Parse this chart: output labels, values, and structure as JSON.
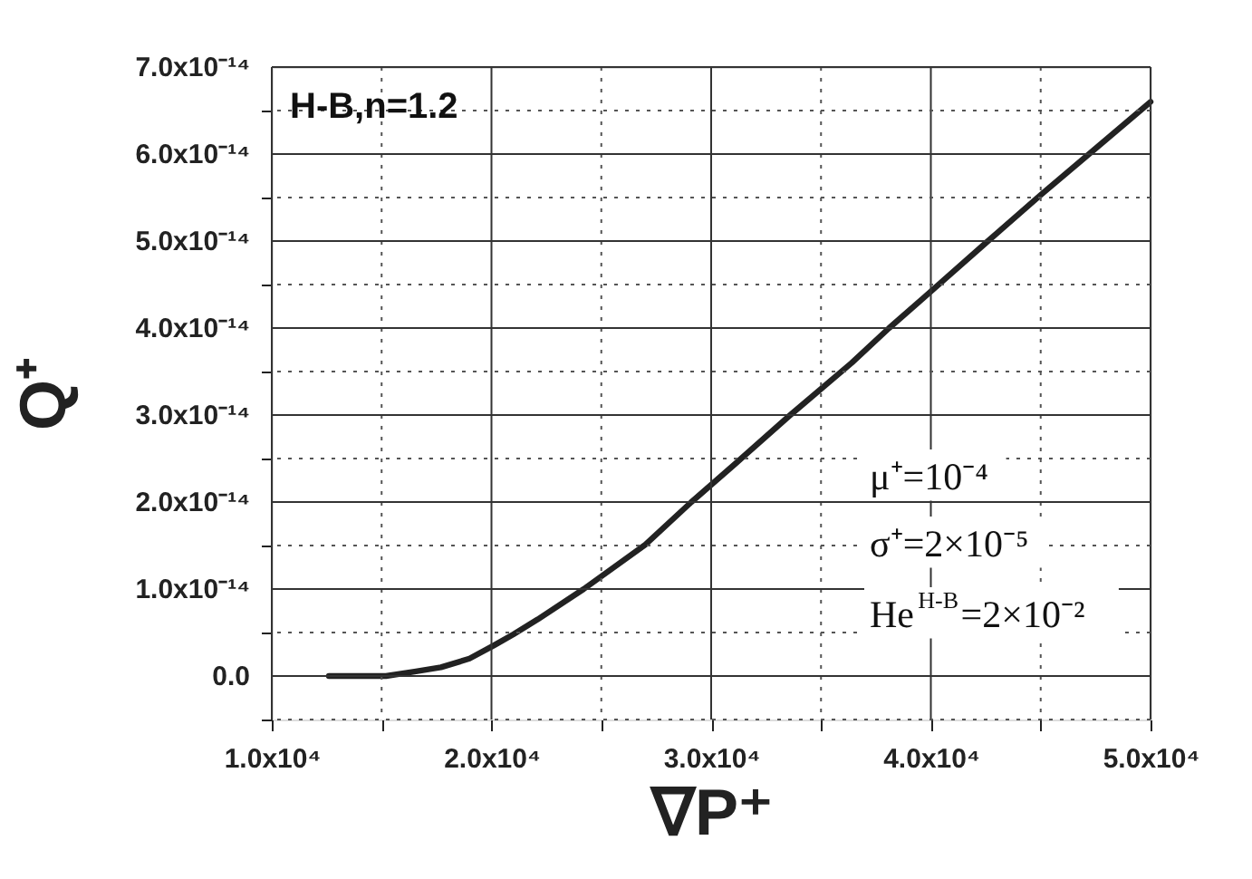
{
  "chart_data": {
    "type": "line",
    "xlabel": "∇P⁺",
    "ylabel": "Q⁺",
    "annotations": [
      "H-B,n=1.2",
      "μ⁺=10⁻⁴",
      "σ⁺=2×10⁻⁵",
      "He$^{H-B}$=2×10⁻²"
    ],
    "x": [
      12600,
      14000,
      15200,
      16500,
      17700,
      19000,
      20100,
      21000,
      22100,
      24200,
      27000,
      29100,
      31100,
      33600,
      36400,
      38100,
      40000,
      42600,
      45000,
      47200,
      50000
    ],
    "series": [
      {
        "color": "#222222",
        "values": [
          0,
          0,
          0,
          5e-16,
          1e-15,
          2e-15,
          3.5e-15,
          4.8e-15,
          6.5e-15,
          1e-14,
          1.51e-14,
          2e-14,
          2.44e-14,
          3e-14,
          3.6e-14,
          4e-14,
          4.42e-14,
          5e-14,
          5.53e-14,
          6e-14,
          6.6e-14
        ]
      }
    ],
    "xlim": [
      10000,
      50000
    ],
    "ylim": [
      -5e-15,
      7e-14
    ],
    "xticks": [
      {
        "value": 10000,
        "label": "1.0x10⁴"
      },
      {
        "value": 15000,
        "label": null
      },
      {
        "value": 20000,
        "label": "2.0x10⁴"
      },
      {
        "value": 25000,
        "label": null
      },
      {
        "value": 30000,
        "label": "3.0x10⁴"
      },
      {
        "value": 35000,
        "label": null
      },
      {
        "value": 40000,
        "label": "4.0x10⁴"
      },
      {
        "value": 45000,
        "label": null
      },
      {
        "value": 50000,
        "label": "5.0x10⁴"
      }
    ],
    "yticks": [
      {
        "value": -5e-15,
        "label": null
      },
      {
        "value": 0,
        "label": "0.0"
      },
      {
        "value": 5e-15,
        "label": null
      },
      {
        "value": 1e-14,
        "label": "1.0x10⁻¹⁴"
      },
      {
        "value": 1.5e-14,
        "label": null
      },
      {
        "value": 2e-14,
        "label": "2.0x10⁻¹⁴"
      },
      {
        "value": 2.5e-14,
        "label": null
      },
      {
        "value": 3e-14,
        "label": "3.0x10⁻¹⁴"
      },
      {
        "value": 3.5e-14,
        "label": null
      },
      {
        "value": 4e-14,
        "label": "4.0x10⁻¹⁴"
      },
      {
        "value": 4.5e-14,
        "label": null
      },
      {
        "value": 5e-14,
        "label": "5.0x10⁻¹⁴"
      },
      {
        "value": 5.5e-14,
        "label": null
      },
      {
        "value": 6e-14,
        "label": "6.0x10⁻¹⁴"
      },
      {
        "value": 6.5e-14,
        "label": null
      },
      {
        "value": 7e-14,
        "label": "7.0x10⁻¹⁴"
      }
    ],
    "grid": true,
    "marker": "none",
    "line_style": "solid"
  }
}
